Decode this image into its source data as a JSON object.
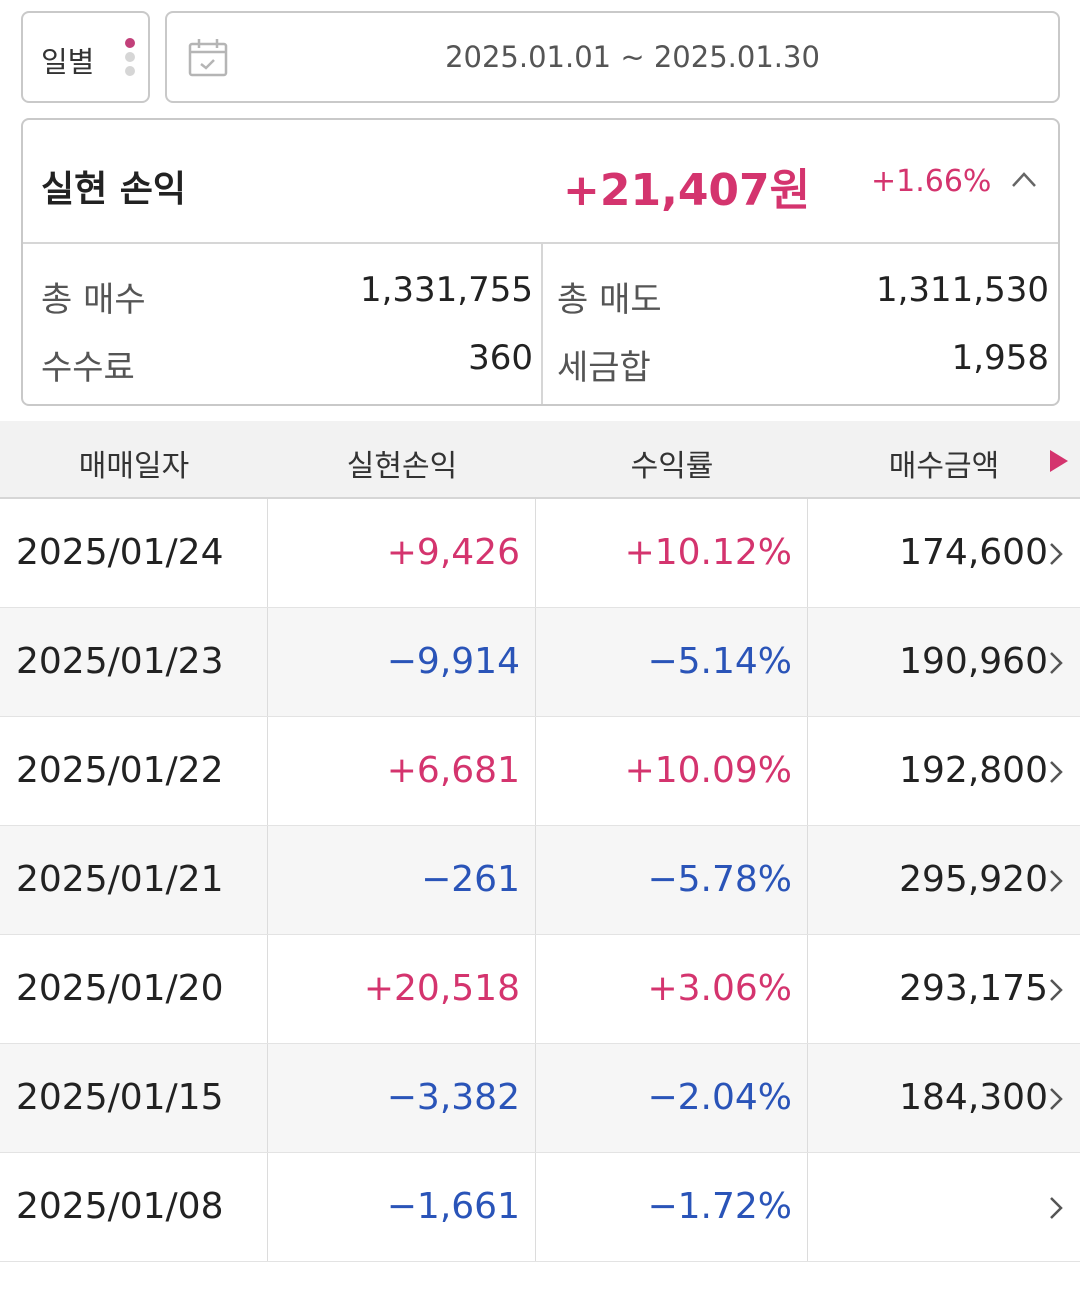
{
  "period": {
    "label": "일별"
  },
  "date_range": {
    "text": "2025.01.01 ~ 2025.01.30"
  },
  "summary": {
    "title": "실현 손익",
    "total": "+21,407원",
    "rate": "+1.66%",
    "total_buy_label": "총 매수",
    "total_buy_value": "1,331,755",
    "total_sell_label": "총 매도",
    "total_sell_value": "1,311,530",
    "fee_label": "수수료",
    "fee_value": "360",
    "tax_label": "세금합",
    "tax_value": "1,958"
  },
  "table": {
    "headers": [
      "매매일자",
      "실현손익",
      "수익률",
      "매수금액"
    ],
    "rows": [
      {
        "date": "2025/01/24",
        "pl": "+9,426",
        "rate": "+10.12%",
        "buy": "174,600"
      },
      {
        "date": "2025/01/23",
        "pl": "−9,914",
        "rate": "−5.14%",
        "buy": "190,960"
      },
      {
        "date": "2025/01/22",
        "pl": "+6,681",
        "rate": "+10.09%",
        "buy": "192,800"
      },
      {
        "date": "2025/01/21",
        "pl": "−261",
        "rate": "−5.78%",
        "buy": "295,920"
      },
      {
        "date": "2025/01/20",
        "pl": "+20,518",
        "rate": "+3.06%",
        "buy": "293,175"
      },
      {
        "date": "2025/01/15",
        "pl": "−3,382",
        "rate": "−2.04%",
        "buy": "184,300"
      },
      {
        "date": "2025/01/08",
        "pl": "−1,661",
        "rate": "−1.72%",
        "buy": ""
      }
    ]
  },
  "colors": {
    "positive": "#d4346e",
    "negative": "#2a54b8",
    "accent": "#c2407a"
  },
  "icons": [
    "calendar-icon",
    "chevron-up-icon",
    "play-right-icon",
    "chevron-right-icon"
  ]
}
